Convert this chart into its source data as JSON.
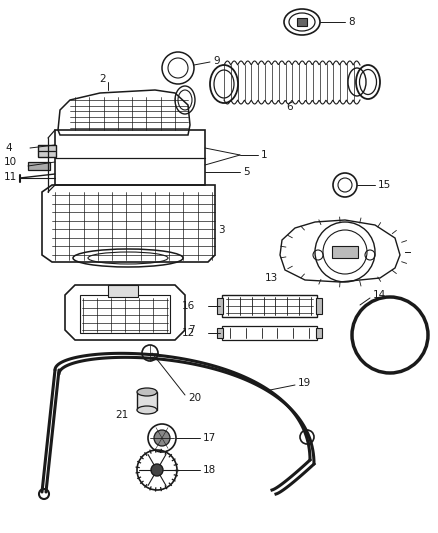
{
  "bg_color": "#ffffff",
  "line_color": "#1a1a1a",
  "fig_w": 4.38,
  "fig_h": 5.33,
  "dpi": 100,
  "parts_label_fontsize": 7.5
}
